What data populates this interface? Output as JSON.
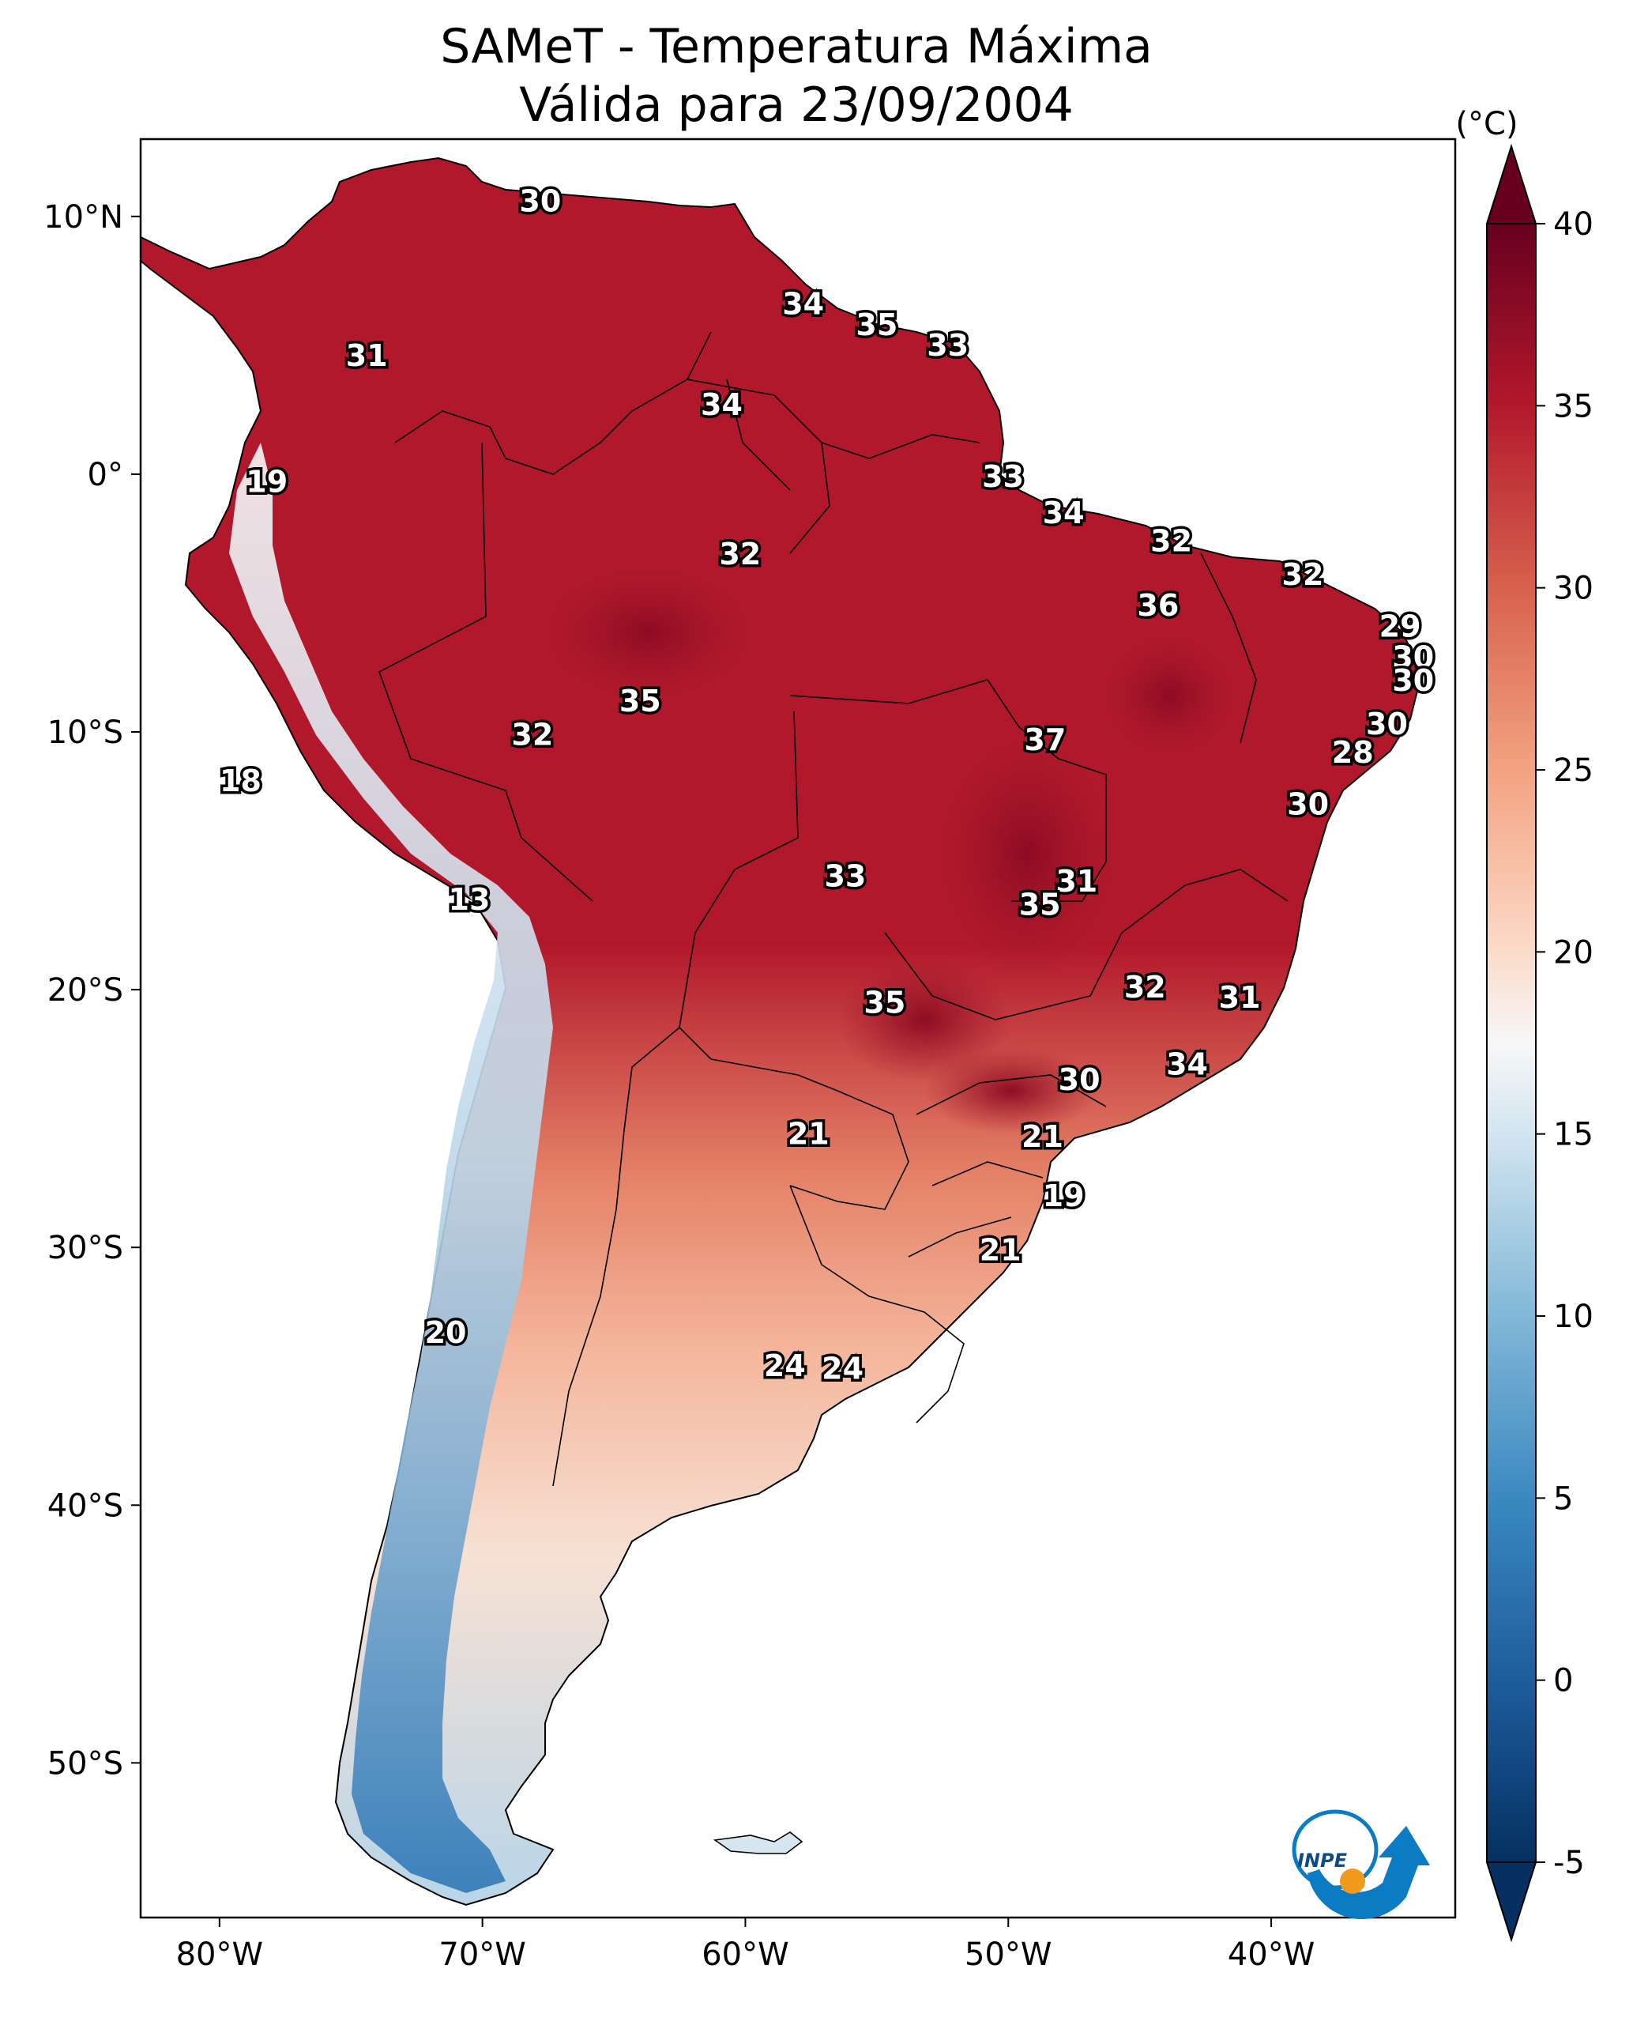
{
  "title": {
    "line1": "SAMeT - Temperatura Máxima",
    "line2": "Válida para 23/09/2004"
  },
  "map": {
    "projection": "PlateCarree",
    "extent_lon": [
      -83,
      -33
    ],
    "extent_lat": [
      -56,
      13
    ],
    "lat_ticks": [
      {
        "value": 10,
        "label": "10°N"
      },
      {
        "value": 0,
        "label": "0°"
      },
      {
        "value": -10,
        "label": "10°S"
      },
      {
        "value": -20,
        "label": "20°S"
      },
      {
        "value": -30,
        "label": "30°S"
      },
      {
        "value": -40,
        "label": "40°S"
      },
      {
        "value": -50,
        "label": "50°S"
      }
    ],
    "lon_ticks": [
      {
        "value": -80,
        "label": "80°W"
      },
      {
        "value": -70,
        "label": "70°W"
      },
      {
        "value": -60,
        "label": "60°W"
      },
      {
        "value": -50,
        "label": "50°W"
      },
      {
        "value": -40,
        "label": "40°W"
      }
    ],
    "contour_labels": [
      {
        "lon": -67.8,
        "lat": 10.6,
        "text": "30"
      },
      {
        "lon": -74.4,
        "lat": 4.6,
        "text": "31"
      },
      {
        "lon": -57.8,
        "lat": 6.6,
        "text": "34"
      },
      {
        "lon": -55.0,
        "lat": 5.8,
        "text": "35"
      },
      {
        "lon": -52.3,
        "lat": 5.0,
        "text": "33"
      },
      {
        "lon": -60.9,
        "lat": 2.7,
        "text": "34"
      },
      {
        "lon": -78.2,
        "lat": -0.3,
        "text": "19"
      },
      {
        "lon": -50.2,
        "lat": -0.1,
        "text": "33"
      },
      {
        "lon": -47.9,
        "lat": -1.5,
        "text": "34"
      },
      {
        "lon": -43.8,
        "lat": -2.6,
        "text": "32"
      },
      {
        "lon": -60.2,
        "lat": -3.1,
        "text": "32"
      },
      {
        "lon": -38.8,
        "lat": -3.9,
        "text": "32"
      },
      {
        "lon": -44.3,
        "lat": -5.1,
        "text": "36"
      },
      {
        "lon": -35.1,
        "lat": -5.9,
        "text": "29"
      },
      {
        "lon": -34.6,
        "lat": -7.1,
        "text": "30"
      },
      {
        "lon": -34.6,
        "lat": -8.0,
        "text": "30"
      },
      {
        "lon": -64.0,
        "lat": -8.8,
        "text": "35"
      },
      {
        "lon": -68.1,
        "lat": -10.1,
        "text": "32"
      },
      {
        "lon": -35.6,
        "lat": -9.7,
        "text": "30"
      },
      {
        "lon": -48.6,
        "lat": -10.3,
        "text": "37"
      },
      {
        "lon": -36.9,
        "lat": -10.8,
        "text": "28"
      },
      {
        "lon": -79.2,
        "lat": -11.9,
        "text": "18"
      },
      {
        "lon": -38.6,
        "lat": -12.8,
        "text": "30"
      },
      {
        "lon": -56.2,
        "lat": -15.6,
        "text": "33"
      },
      {
        "lon": -47.4,
        "lat": -15.8,
        "text": "31"
      },
      {
        "lon": -48.8,
        "lat": -16.7,
        "text": "35"
      },
      {
        "lon": -70.5,
        "lat": -16.5,
        "text": "13"
      },
      {
        "lon": -44.8,
        "lat": -19.9,
        "text": "32"
      },
      {
        "lon": -41.2,
        "lat": -20.3,
        "text": "31"
      },
      {
        "lon": -54.7,
        "lat": -20.5,
        "text": "35"
      },
      {
        "lon": -43.2,
        "lat": -22.9,
        "text": "34"
      },
      {
        "lon": -47.3,
        "lat": -23.5,
        "text": "30"
      },
      {
        "lon": -57.6,
        "lat": -25.6,
        "text": "21"
      },
      {
        "lon": -48.7,
        "lat": -25.7,
        "text": "21"
      },
      {
        "lon": -47.9,
        "lat": -28.0,
        "text": "19"
      },
      {
        "lon": -50.3,
        "lat": -30.1,
        "text": "21"
      },
      {
        "lon": -71.4,
        "lat": -33.3,
        "text": "20"
      },
      {
        "lon": -58.5,
        "lat": -34.6,
        "text": "24"
      },
      {
        "lon": -56.3,
        "lat": -34.7,
        "text": "24"
      }
    ]
  },
  "colorbar": {
    "unit_label": "(°C)",
    "min": -5,
    "max": 40,
    "extend": "both",
    "cmap": "RdBu_r",
    "ticks": [
      {
        "value": -5,
        "label": "-5"
      },
      {
        "value": 0,
        "label": "0"
      },
      {
        "value": 5,
        "label": "5"
      },
      {
        "value": 10,
        "label": "10"
      },
      {
        "value": 15,
        "label": "15"
      },
      {
        "value": 20,
        "label": "20"
      },
      {
        "value": 25,
        "label": "25"
      },
      {
        "value": 30,
        "label": "30"
      },
      {
        "value": 35,
        "label": "35"
      },
      {
        "value": 40,
        "label": "40"
      }
    ]
  },
  "logo": {
    "text": "INPE",
    "colors": {
      "blue": "#0b7cc4",
      "orange": "#f29a1c"
    }
  },
  "chart_data": {
    "type": "heatmap",
    "title": "SAMeT - Temperatura Máxima Válida para 23/09/2004",
    "xlabel": "",
    "ylabel": "",
    "x_range": [
      -83,
      -33
    ],
    "y_range": [
      -56,
      13
    ],
    "colorbar_range": [
      -5,
      40
    ],
    "colorbar_unit": "(°C)"
  }
}
